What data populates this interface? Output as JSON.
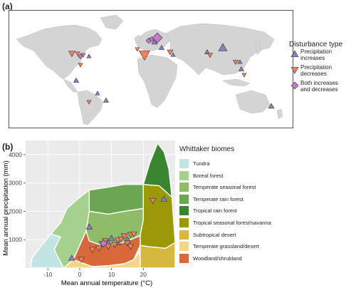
{
  "panel_a": {
    "label": "(a)",
    "legend_title": "Disturbance type",
    "legend": [
      {
        "key": "increase",
        "lines": [
          "Precipitation",
          "increases"
        ],
        "color": "#8b7fc0",
        "shape": "triangle-up"
      },
      {
        "key": "decrease",
        "lines": [
          "Precipitation",
          "decreases"
        ],
        "color": "#f08060",
        "shape": "triangle-down"
      },
      {
        "key": "both",
        "lines": [
          "Both increases",
          "and decreases"
        ],
        "color": "#c27bc7",
        "shape": "diamond"
      }
    ],
    "colors": {
      "land": "#d4d4d4",
      "ocean": "#ffffff",
      "outline": "#555555"
    }
  },
  "panel_b": {
    "label": "(b)",
    "legend_title": "Whittaker biomes",
    "biomes": [
      {
        "name": "Tundra",
        "color": "#c2e4e2"
      },
      {
        "name": "Boreal forest",
        "color": "#a6d08d"
      },
      {
        "name": "Temperate seasonal forest",
        "color": "#8ebc68"
      },
      {
        "name": "Temperate rain forest",
        "color": "#6aa750"
      },
      {
        "name": "Tropical rain forest",
        "color": "#3a8530"
      },
      {
        "name": "Tropical seasonal forest/savanna",
        "color": "#99990a"
      },
      {
        "name": "Subtropical desert",
        "color": "#d6b840"
      },
      {
        "name": "Temperate grassland/desert",
        "color": "#f5d588"
      },
      {
        "name": "Woodland/shrubland",
        "color": "#d6683a"
      }
    ]
  },
  "chart_data": {
    "type": "scatter",
    "xlabel": "Mean annual temperature (°C)",
    "ylabel": "Mean annual precipitation (mm)",
    "xlim": [
      -17,
      30
    ],
    "ylim": [
      0,
      4500
    ],
    "xticks": [
      -10,
      0,
      10,
      20
    ],
    "yticks": [
      1000,
      2000,
      3000,
      4000
    ],
    "grid": true,
    "series": [
      {
        "name": "Precipitation increases",
        "points": [
          [
            -2.5,
            350
          ],
          [
            3,
            1450
          ],
          [
            9,
            890
          ],
          [
            10,
            1050
          ],
          [
            12,
            900
          ],
          [
            15,
            1000
          ],
          [
            26.5,
            2430
          ]
        ]
      },
      {
        "name": "Precipitation decreases",
        "points": [
          [
            0.5,
            300
          ],
          [
            4,
            650
          ],
          [
            6,
            700
          ],
          [
            7,
            860
          ],
          [
            8,
            960
          ],
          [
            9,
            770
          ],
          [
            11,
            830
          ],
          [
            12,
            980
          ],
          [
            13,
            1020
          ],
          [
            14,
            1130
          ],
          [
            15,
            880
          ],
          [
            16,
            760
          ],
          [
            16,
            1180
          ],
          [
            17,
            1200
          ],
          [
            23,
            2380
          ]
        ]
      },
      {
        "name": "Both increases and decreases",
        "points": [
          [
            7.5,
            870
          ]
        ]
      }
    ],
    "biome_regions": [
      {
        "name": "Tundra",
        "polygon": [
          [
            -15.5,
            0
          ],
          [
            -15,
            350
          ],
          [
            -12,
            800
          ],
          [
            -9,
            1200
          ],
          [
            -6,
            1100
          ],
          [
            -8,
            650
          ],
          [
            -7,
            420
          ],
          [
            -5,
            0
          ]
        ]
      },
      {
        "name": "Boreal forest",
        "polygon": [
          [
            -9,
            1200
          ],
          [
            -6,
            1600
          ],
          [
            -4,
            2100
          ],
          [
            -1,
            2400
          ],
          [
            3,
            2750
          ],
          [
            3,
            2000
          ],
          [
            2,
            1300
          ],
          [
            0,
            800
          ],
          [
            -2,
            300
          ],
          [
            -5,
            0
          ],
          [
            -7,
            420
          ],
          [
            -8,
            650
          ],
          [
            -6,
            1100
          ]
        ]
      },
      {
        "name": "Temperate rain forest",
        "polygon": [
          [
            3,
            2750
          ],
          [
            9,
            2850
          ],
          [
            14,
            2950
          ],
          [
            20,
            2950
          ],
          [
            20,
            2100
          ],
          [
            14,
            2000
          ],
          [
            9,
            1900
          ],
          [
            3,
            2000
          ]
        ]
      },
      {
        "name": "Temperate seasonal forest",
        "polygon": [
          [
            3,
            2000
          ],
          [
            9,
            1900
          ],
          [
            14,
            2000
          ],
          [
            20,
            2100
          ],
          [
            20,
            1700
          ],
          [
            19,
            1150
          ],
          [
            16,
            1000
          ],
          [
            12,
            850
          ],
          [
            7,
            800
          ],
          [
            3,
            950
          ],
          [
            2,
            1300
          ]
        ]
      },
      {
        "name": "Woodland/shrubland",
        "polygon": [
          [
            0,
            800
          ],
          [
            2,
            1300
          ],
          [
            3,
            950
          ],
          [
            7,
            800
          ],
          [
            12,
            850
          ],
          [
            16,
            1000
          ],
          [
            19,
            1150
          ],
          [
            19,
            800
          ],
          [
            17,
            300
          ],
          [
            14,
            150
          ],
          [
            9,
            80
          ],
          [
            4,
            50
          ],
          [
            -2,
            300
          ]
        ]
      },
      {
        "name": "Temperate grassland/desert",
        "polygon": [
          [
            -5,
            0
          ],
          [
            -2,
            300
          ],
          [
            4,
            50
          ],
          [
            9,
            80
          ],
          [
            14,
            150
          ],
          [
            17,
            300
          ],
          [
            19,
            600
          ],
          [
            19,
            0
          ]
        ]
      },
      {
        "name": "Subtropical desert",
        "polygon": [
          [
            19,
            0
          ],
          [
            19,
            800
          ],
          [
            22,
            750
          ],
          [
            27,
            700
          ],
          [
            30,
            900
          ],
          [
            30,
            0
          ]
        ]
      },
      {
        "name": "Tropical seasonal forest/savanna",
        "polygon": [
          [
            19,
            800
          ],
          [
            19,
            1150
          ],
          [
            20,
            1700
          ],
          [
            20,
            2950
          ],
          [
            25,
            2900
          ],
          [
            29,
            2500
          ],
          [
            30,
            900
          ],
          [
            27,
            700
          ],
          [
            22,
            750
          ]
        ]
      },
      {
        "name": "Tropical rain forest",
        "polygon": [
          [
            20,
            2950
          ],
          [
            22,
            3700
          ],
          [
            24.5,
            4400
          ],
          [
            26.5,
            4100
          ],
          [
            28,
            3500
          ],
          [
            29,
            2500
          ],
          [
            25,
            2900
          ]
        ]
      }
    ]
  }
}
